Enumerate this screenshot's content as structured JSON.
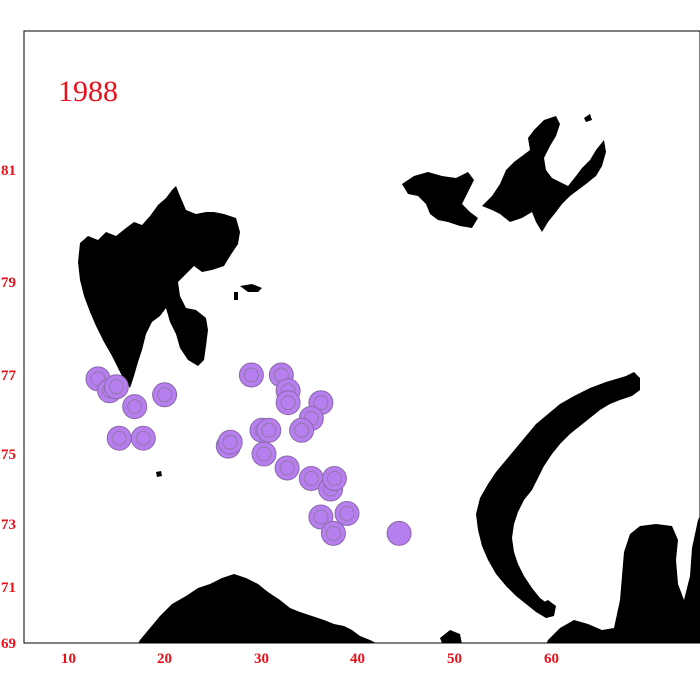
{
  "year_label": "1988",
  "colors": {
    "label": "#e8101a",
    "land": "#000000",
    "station_fill": "#b77ef0",
    "station_stroke": "#8a6aa8",
    "frame": "#000000"
  },
  "axes": {
    "lat_ticks": [
      "81",
      "79",
      "77",
      "75",
      "73",
      "71",
      "69"
    ],
    "lon_ticks": [
      "10",
      "20",
      "30",
      "40",
      "50",
      "60"
    ]
  },
  "land_names": [
    "svalbard-landmass",
    "franz-josef-land",
    "bear-island",
    "novaya-zemlya",
    "scandinavia-kola-coast",
    "russian-mainland-east",
    "kolguev-island"
  ],
  "stations": [
    {
      "lon": 12.9,
      "lat": 76.9,
      "inner": true
    },
    {
      "lon": 14.1,
      "lat": 76.6,
      "inner": true
    },
    {
      "lon": 14.8,
      "lat": 76.7,
      "inner": true
    },
    {
      "lon": 16.7,
      "lat": 76.2,
      "inner": true
    },
    {
      "lon": 19.8,
      "lat": 76.5,
      "inner": true
    },
    {
      "lon": 15.1,
      "lat": 75.4,
      "inner": true
    },
    {
      "lon": 17.6,
      "lat": 75.4,
      "inner": true
    },
    {
      "lon": 26.4,
      "lat": 75.2,
      "inner": true
    },
    {
      "lon": 26.6,
      "lat": 75.3,
      "inner": true
    },
    {
      "lon": 28.8,
      "lat": 77.0,
      "inner": true
    },
    {
      "lon": 31.9,
      "lat": 77.0,
      "inner": true
    },
    {
      "lon": 32.6,
      "lat": 76.6,
      "inner": true
    },
    {
      "lon": 32.6,
      "lat": 76.3,
      "inner": true
    },
    {
      "lon": 36.0,
      "lat": 76.3,
      "inner": true
    },
    {
      "lon": 35.0,
      "lat": 75.9,
      "inner": true
    },
    {
      "lon": 34.0,
      "lat": 75.6,
      "inner": true
    },
    {
      "lon": 29.9,
      "lat": 75.6,
      "inner": true
    },
    {
      "lon": 30.6,
      "lat": 75.6,
      "inner": true
    },
    {
      "lon": 30.1,
      "lat": 75.0,
      "inner": true
    },
    {
      "lon": 32.5,
      "lat": 74.6,
      "inner": true
    },
    {
      "lon": 35.0,
      "lat": 74.3,
      "inner": true
    },
    {
      "lon": 37.0,
      "lat": 74.0,
      "inner": true
    },
    {
      "lon": 37.4,
      "lat": 74.3,
      "inner": true
    },
    {
      "lon": 36.0,
      "lat": 73.2,
      "inner": true
    },
    {
      "lon": 38.7,
      "lat": 73.3,
      "inner": true
    },
    {
      "lon": 37.3,
      "lat": 72.7,
      "inner": true
    },
    {
      "lon": 44.1,
      "lat": 72.7,
      "inner": false
    }
  ]
}
